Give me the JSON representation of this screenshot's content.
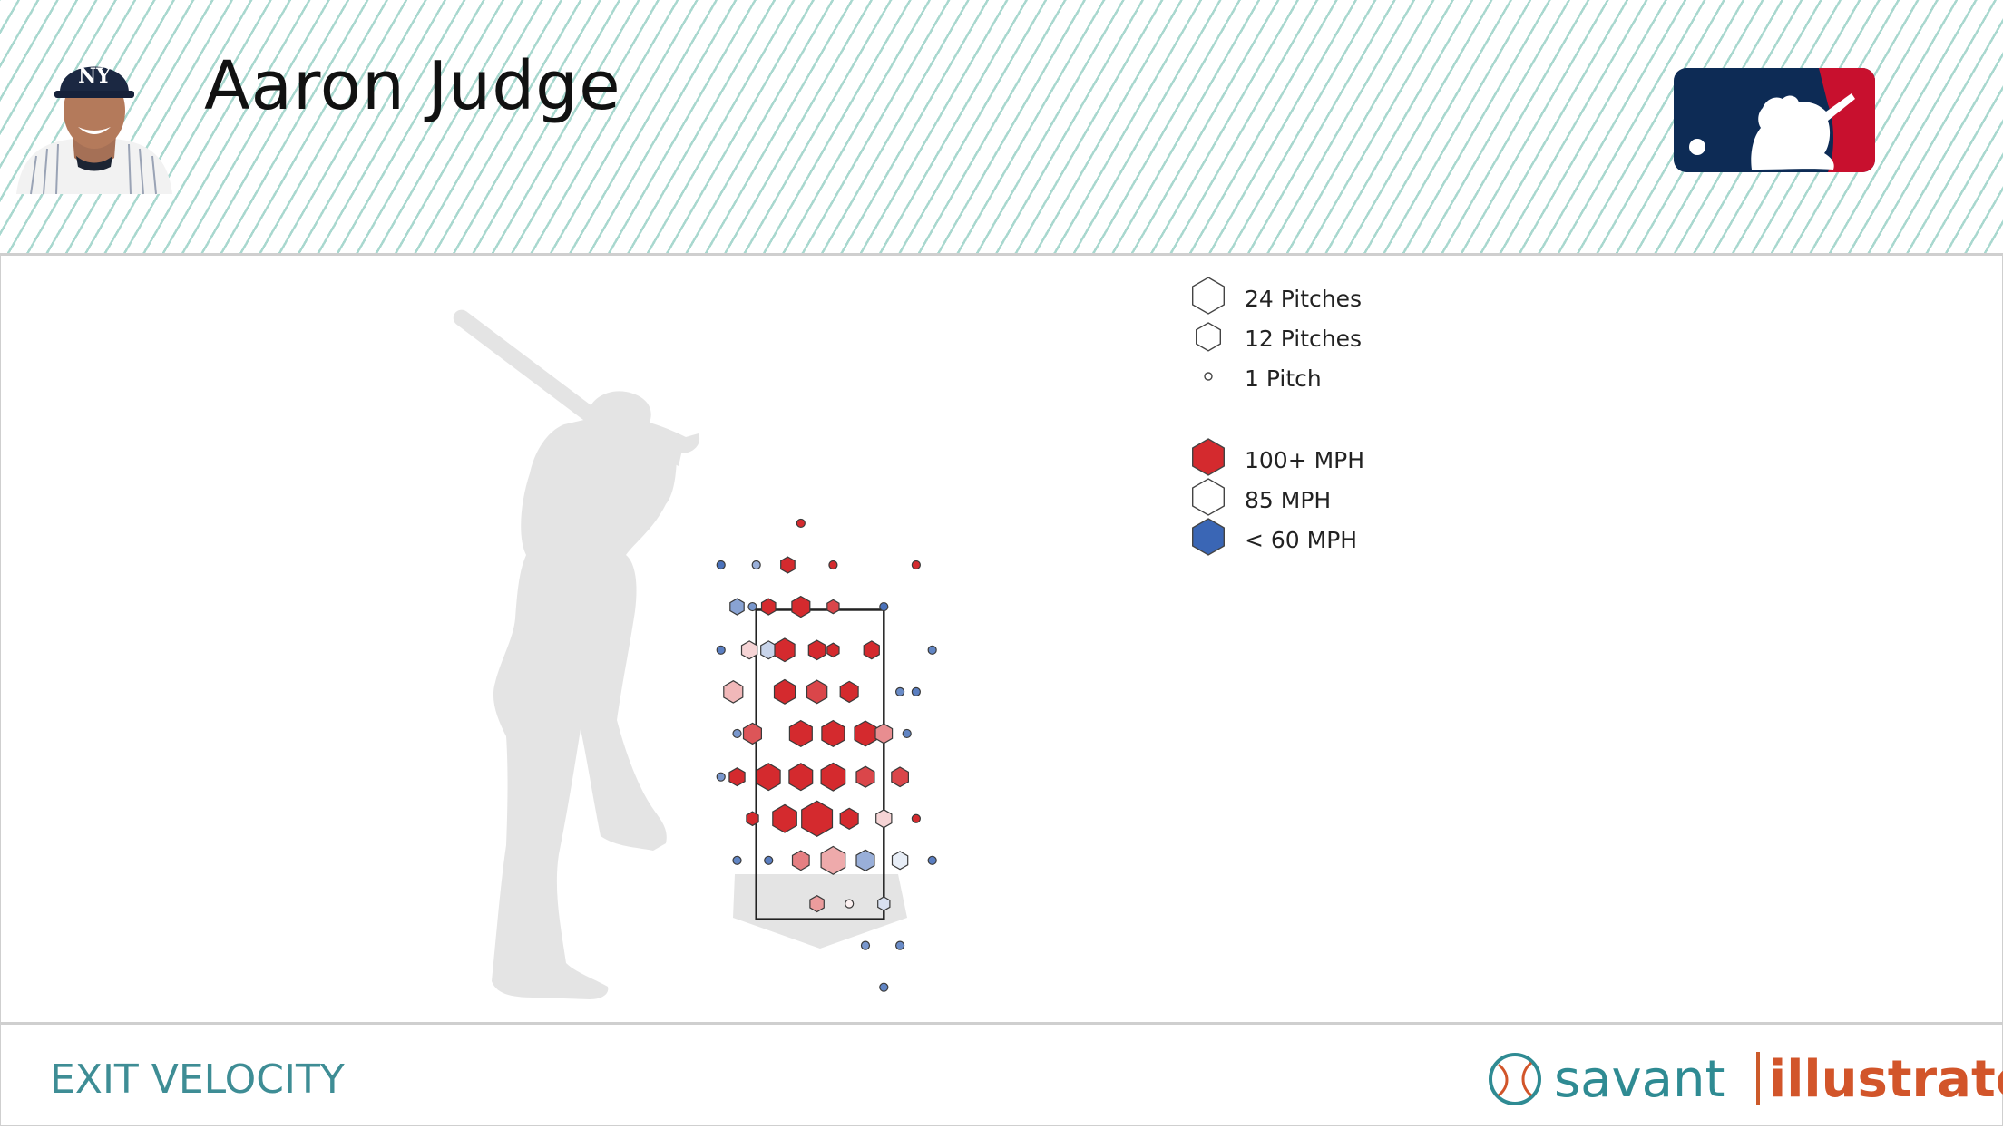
{
  "header": {
    "player_name": "Aaron Judge",
    "logo": "mlb-logo-icon",
    "headshot": "player-headshot-icon"
  },
  "footer": {
    "metric_title": "EXIT VELOCITY",
    "brand_savant": "savant",
    "brand_illustrator": "illustrator"
  },
  "legend": {
    "size_entries": [
      {
        "label": "24 Pitches",
        "pitches": 24
      },
      {
        "label": "12 Pitches",
        "pitches": 12
      },
      {
        "label": "1 Pitch",
        "pitches": 1
      }
    ],
    "color_entries": [
      {
        "label": "100+ MPH",
        "color": "#d42a2e"
      },
      {
        "label": "85 MPH",
        "color": "#ffffff"
      },
      {
        "label": "< 60 MPH",
        "color": "#3a66b5"
      }
    ]
  },
  "colors": {
    "hot": "#d42a2e",
    "neutral": "#ffffff",
    "cold": "#3a66b5",
    "stripe": "#a9d8cf",
    "title": "#3e8d95",
    "brand_orange": "#d2552a"
  },
  "chart_data": {
    "type": "heatmap",
    "title": "",
    "xlabel": "",
    "ylabel": "",
    "xlim": [
      -1.7,
      1.7
    ],
    "ylim": [
      0.9,
      4.3
    ],
    "strike_zone": {
      "x": [
        -0.83,
        0.83
      ],
      "z": [
        1.5,
        3.5
      ]
    },
    "value_units": "MPH",
    "size_units": "pitches",
    "color_scale": {
      "min_mph": 60,
      "mid_mph": 85,
      "max_mph": 100
    },
    "bins": [
      {
        "x": -0.25,
        "z": 4.06,
        "count": 1,
        "mph": 103
      },
      {
        "x": -0.42,
        "z": 3.79,
        "count": 3,
        "mph": 101
      },
      {
        "x": 0.17,
        "z": 3.79,
        "count": 1,
        "mph": 100
      },
      {
        "x": 1.25,
        "z": 3.79,
        "count": 1,
        "mph": 102
      },
      {
        "x": -1.29,
        "z": 3.79,
        "count": 1,
        "mph": 62
      },
      {
        "x": -0.83,
        "z": 3.79,
        "count": 1,
        "mph": 72
      },
      {
        "x": -1.08,
        "z": 3.52,
        "count": 3,
        "mph": 70
      },
      {
        "x": -0.88,
        "z": 3.52,
        "count": 1,
        "mph": 68
      },
      {
        "x": -0.67,
        "z": 3.52,
        "count": 3,
        "mph": 103
      },
      {
        "x": -0.25,
        "z": 3.52,
        "count": 6,
        "mph": 104
      },
      {
        "x": 0.17,
        "z": 3.52,
        "count": 2,
        "mph": 98
      },
      {
        "x": 0.83,
        "z": 3.52,
        "count": 1,
        "mph": 62
      },
      {
        "x": -1.29,
        "z": 3.24,
        "count": 1,
        "mph": 64
      },
      {
        "x": -0.92,
        "z": 3.24,
        "count": 4,
        "mph": 88
      },
      {
        "x": -0.67,
        "z": 3.24,
        "count": 4,
        "mph": 78
      },
      {
        "x": -0.46,
        "z": 3.24,
        "count": 8,
        "mph": 102
      },
      {
        "x": -0.04,
        "z": 3.24,
        "count": 5,
        "mph": 104
      },
      {
        "x": 0.17,
        "z": 3.24,
        "count": 2,
        "mph": 102
      },
      {
        "x": 0.67,
        "z": 3.24,
        "count": 4,
        "mph": 103
      },
      {
        "x": 1.46,
        "z": 3.24,
        "count": 1,
        "mph": 65
      },
      {
        "x": -1.13,
        "z": 2.97,
        "count": 7,
        "mph": 90
      },
      {
        "x": -0.46,
        "z": 2.97,
        "count": 9,
        "mph": 104
      },
      {
        "x": -0.04,
        "z": 2.97,
        "count": 8,
        "mph": 98
      },
      {
        "x": 0.38,
        "z": 2.97,
        "count": 6,
        "mph": 103
      },
      {
        "x": 1.04,
        "z": 2.97,
        "count": 1,
        "mph": 66
      },
      {
        "x": 1.25,
        "z": 2.97,
        "count": 1,
        "mph": 64
      },
      {
        "x": -1.08,
        "z": 2.7,
        "count": 1,
        "mph": 68
      },
      {
        "x": -0.88,
        "z": 2.7,
        "count": 6,
        "mph": 97
      },
      {
        "x": -0.25,
        "z": 2.7,
        "count": 11,
        "mph": 105
      },
      {
        "x": 0.17,
        "z": 2.7,
        "count": 11,
        "mph": 103
      },
      {
        "x": 0.59,
        "z": 2.7,
        "count": 10,
        "mph": 105
      },
      {
        "x": 0.83,
        "z": 2.7,
        "count": 5,
        "mph": 93
      },
      {
        "x": 1.13,
        "z": 2.7,
        "count": 1,
        "mph": 65
      },
      {
        "x": -1.29,
        "z": 2.42,
        "count": 1,
        "mph": 68
      },
      {
        "x": -1.08,
        "z": 2.42,
        "count": 4,
        "mph": 103
      },
      {
        "x": -0.67,
        "z": 2.42,
        "count": 12,
        "mph": 105
      },
      {
        "x": -0.25,
        "z": 2.42,
        "count": 12,
        "mph": 104
      },
      {
        "x": 0.17,
        "z": 2.42,
        "count": 13,
        "mph": 104
      },
      {
        "x": 0.59,
        "z": 2.42,
        "count": 6,
        "mph": 98
      },
      {
        "x": 1.04,
        "z": 2.42,
        "count": 5,
        "mph": 98
      },
      {
        "x": -0.88,
        "z": 2.15,
        "count": 2,
        "mph": 105
      },
      {
        "x": -0.46,
        "z": 2.15,
        "count": 13,
        "mph": 105
      },
      {
        "x": -0.04,
        "z": 2.15,
        "count": 24,
        "mph": 104
      },
      {
        "x": 0.38,
        "z": 2.15,
        "count": 6,
        "mph": 104
      },
      {
        "x": 0.83,
        "z": 2.15,
        "count": 4,
        "mph": 88
      },
      {
        "x": 1.25,
        "z": 2.15,
        "count": 1,
        "mph": 103
      },
      {
        "x": -1.08,
        "z": 1.88,
        "count": 1,
        "mph": 65
      },
      {
        "x": -0.67,
        "z": 1.88,
        "count": 1,
        "mph": 64
      },
      {
        "x": -0.25,
        "z": 1.88,
        "count": 5,
        "mph": 94
      },
      {
        "x": 0.17,
        "z": 1.88,
        "count": 13,
        "mph": 91
      },
      {
        "x": 0.59,
        "z": 1.88,
        "count": 6,
        "mph": 72
      },
      {
        "x": 1.04,
        "z": 1.88,
        "count": 4,
        "mph": 82
      },
      {
        "x": 1.46,
        "z": 1.88,
        "count": 1,
        "mph": 64
      },
      {
        "x": -0.04,
        "z": 1.6,
        "count": 3,
        "mph": 92
      },
      {
        "x": 0.38,
        "z": 1.6,
        "count": 1,
        "mph": 86
      },
      {
        "x": 0.83,
        "z": 1.6,
        "count": 2,
        "mph": 80
      },
      {
        "x": 0.59,
        "z": 1.33,
        "count": 1,
        "mph": 68
      },
      {
        "x": 1.04,
        "z": 1.33,
        "count": 1,
        "mph": 66
      },
      {
        "x": 0.83,
        "z": 1.06,
        "count": 1,
        "mph": 65
      }
    ]
  }
}
